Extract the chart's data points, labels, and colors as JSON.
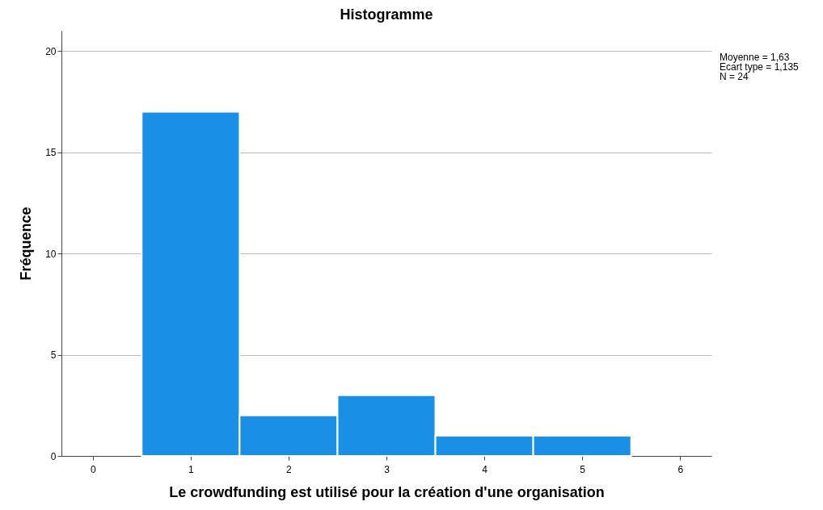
{
  "chart_data": {
    "type": "histogram",
    "title": "Histogramme",
    "xlabel": "Le crowdfunding est utilisé pour la création d'une organisation",
    "ylabel": "Fréquence",
    "bins": [
      0.5,
      1.5,
      2.5,
      3.5,
      4.5,
      5.5
    ],
    "values": [
      17,
      2,
      3,
      1,
      1
    ],
    "color": "#1a8fe6",
    "xlim": [
      -0.32,
      6.32
    ],
    "xticks": [
      0,
      1,
      2,
      3,
      4,
      5,
      6
    ],
    "ylim": [
      0,
      21
    ],
    "yticks": [
      0,
      5,
      10,
      15,
      20
    ],
    "grid": "y",
    "annotations": [
      "Moyenne = 1,63",
      "Ecart type = 1,135",
      "N = 24"
    ]
  }
}
